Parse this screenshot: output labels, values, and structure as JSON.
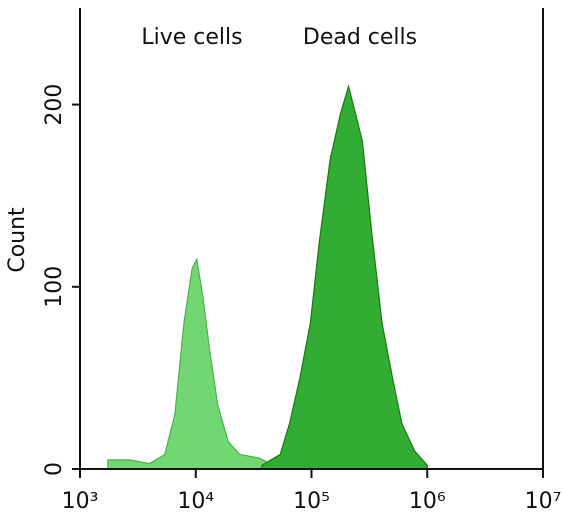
{
  "chart_data": {
    "type": "area",
    "ylabel": "Count",
    "xscale": "log",
    "xlim": [
      1000,
      10000000
    ],
    "xticks": [
      {
        "value": 1000,
        "label": "10³"
      },
      {
        "value": 10000,
        "label": "10⁴"
      },
      {
        "value": 100000,
        "label": "10⁵"
      },
      {
        "value": 1000000,
        "label": "10⁶"
      },
      {
        "value": 10000000,
        "label": "10⁷"
      }
    ],
    "ylim": [
      0,
      253
    ],
    "yticks": [
      0,
      100,
      200
    ],
    "series": [
      {
        "name": "Live cells",
        "color": "#72d672",
        "edge": "#4fb04f",
        "x": [
          1740,
          2700,
          4000,
          5400,
          6600,
          7900,
          9300,
          10200,
          11500,
          13200,
          15500,
          19100,
          24000,
          35500,
          43600
        ],
        "values": [
          5,
          5,
          3,
          8,
          30,
          80,
          110,
          115,
          95,
          65,
          35,
          15,
          8,
          6,
          3
        ]
      },
      {
        "name": "Dead cells",
        "color": "#33ac33",
        "edge": "#187818",
        "x": [
          37200,
          53700,
          64600,
          79400,
          97700,
          117000,
          145000,
          178000,
          209000,
          240000,
          275000,
          331000,
          407000,
          501000,
          603000,
          776000,
          1000000
        ],
        "values": [
          2,
          8,
          25,
          50,
          80,
          125,
          170,
          195,
          210,
          195,
          180,
          130,
          80,
          50,
          25,
          10,
          2
        ]
      }
    ]
  }
}
